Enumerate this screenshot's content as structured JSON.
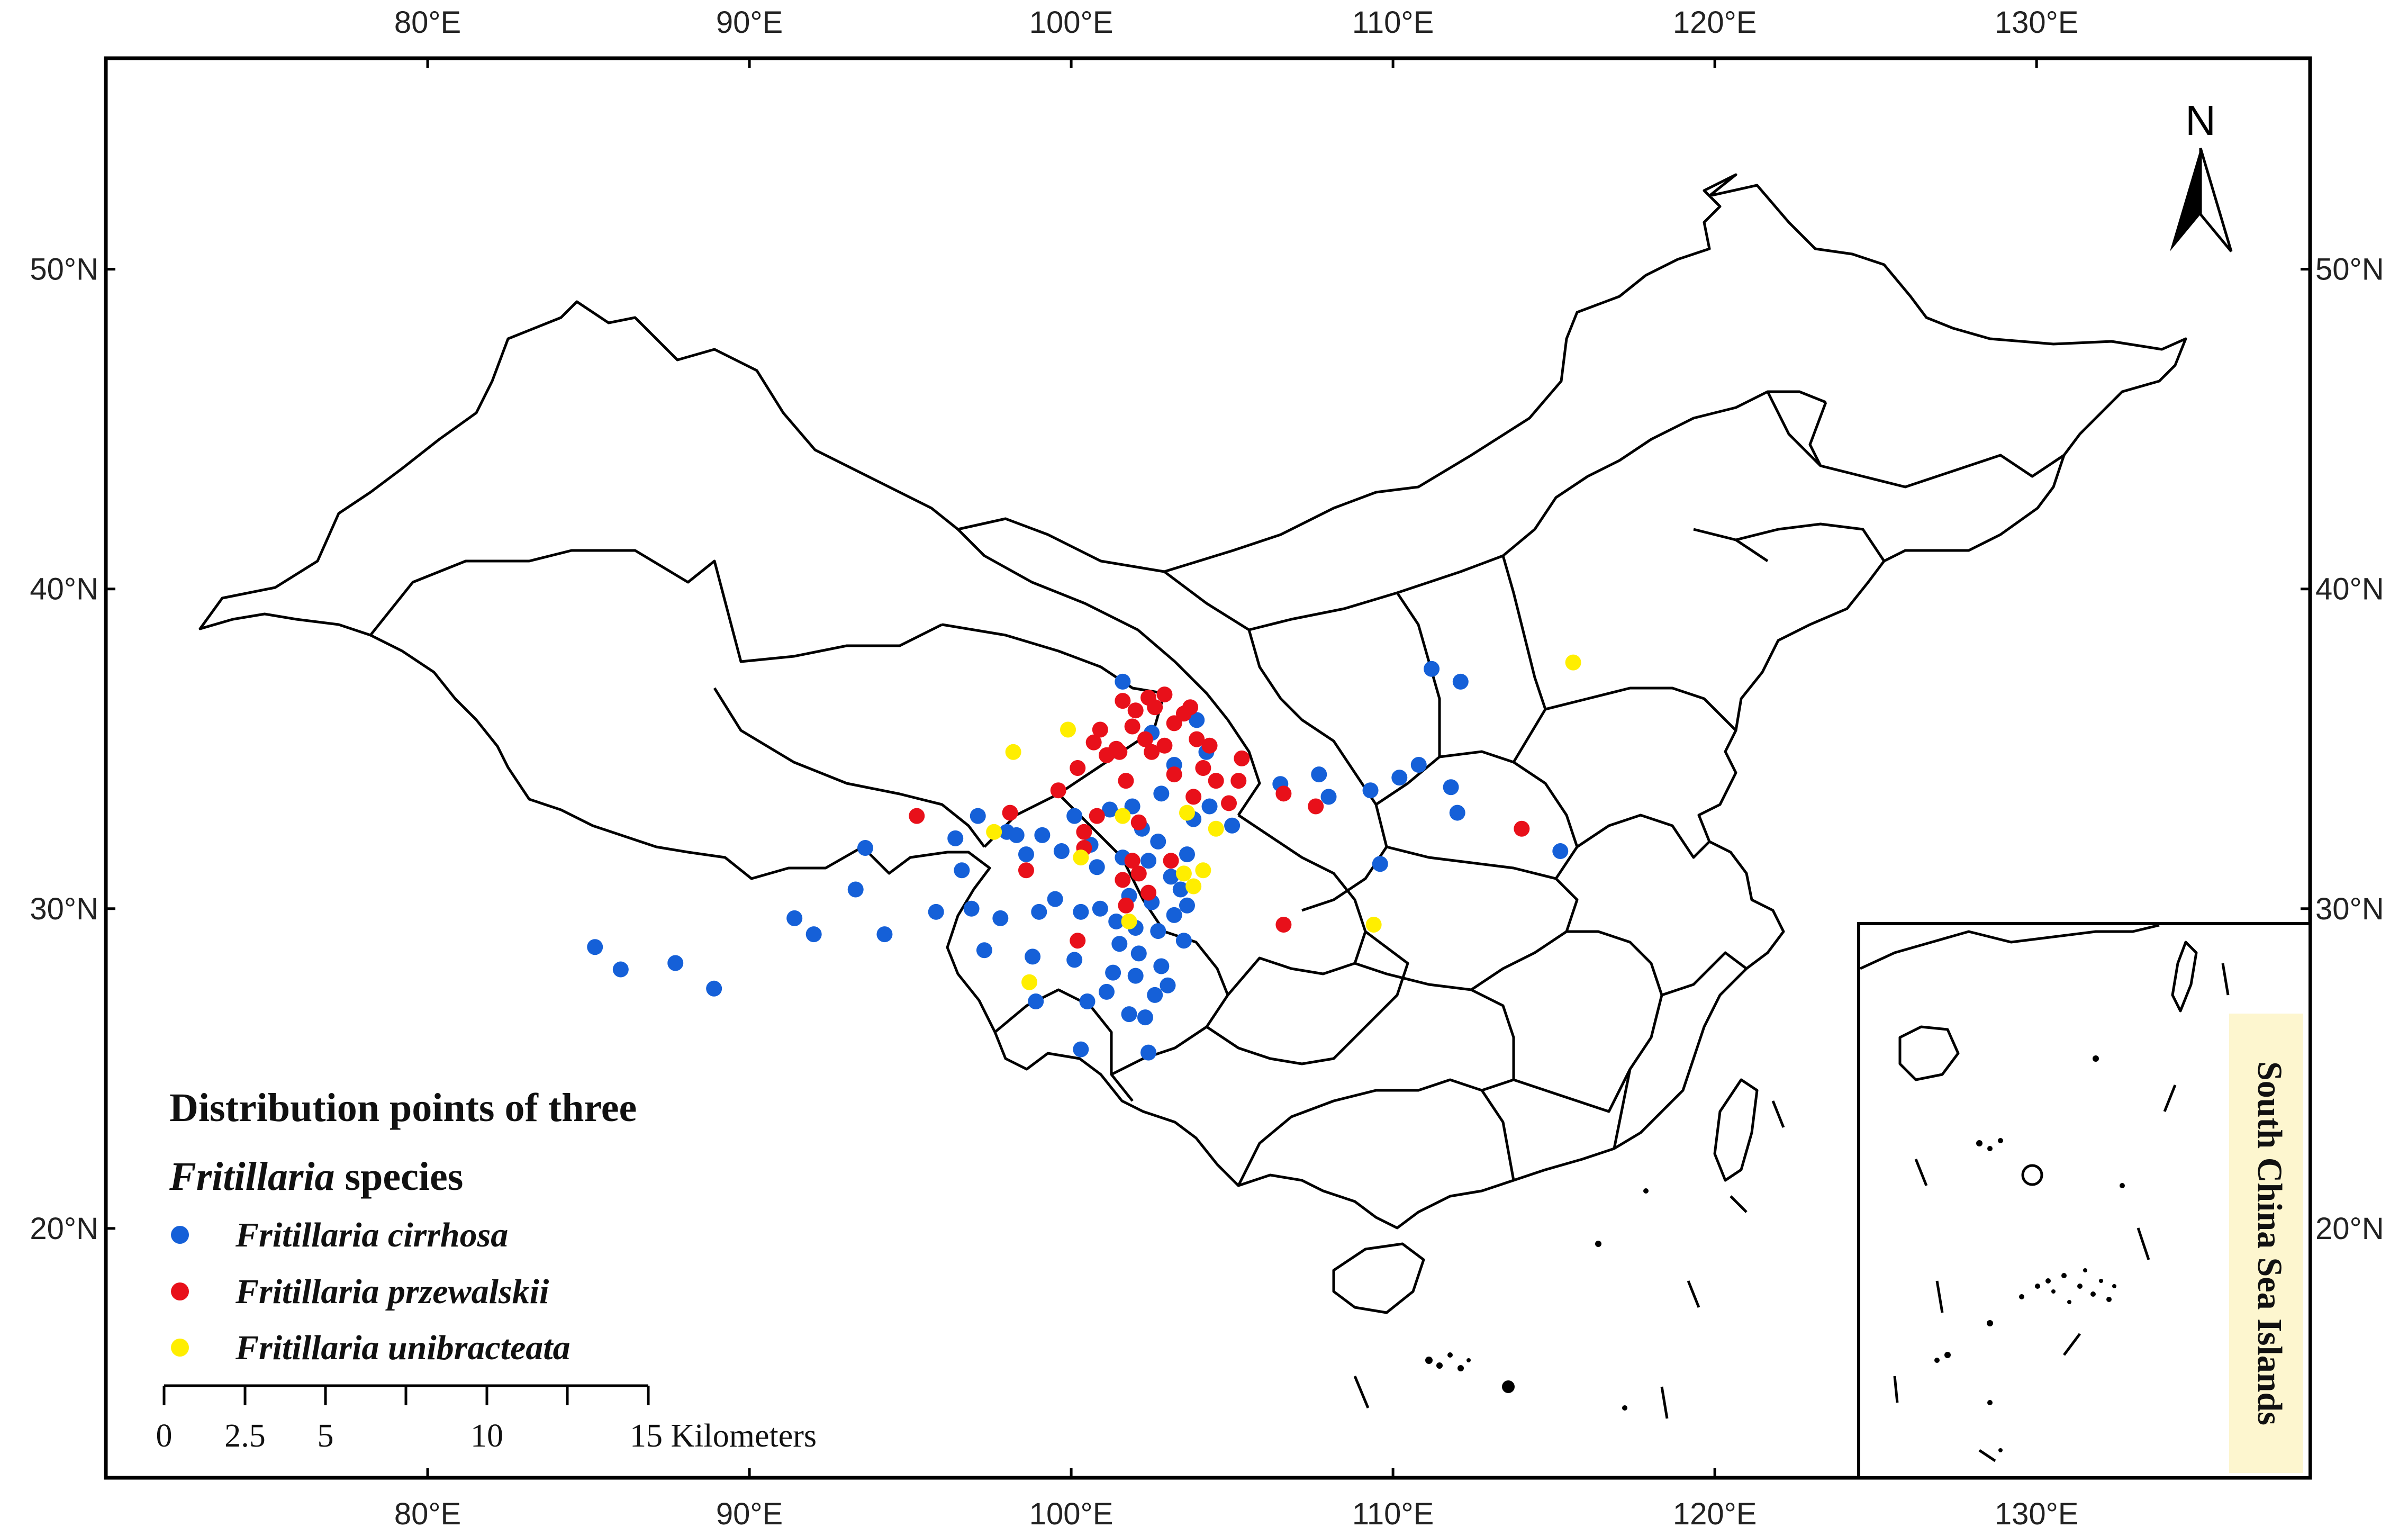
{
  "map": {
    "lon_ticks": [
      80,
      90,
      100,
      110,
      120,
      130
    ],
    "lat_ticks": [
      20,
      30,
      40,
      50
    ],
    "lon_labels": [
      "80°E",
      "90°E",
      "100°E",
      "110°E",
      "120°E",
      "130°E"
    ],
    "lat_labels": [
      "20°N",
      "30°N",
      "40°N",
      "50°N"
    ],
    "extent": {
      "lon_min": 70,
      "lon_max": 138.5,
      "lat_min": 12.2,
      "lat_max": 56.6
    }
  },
  "legend": {
    "title_line1": "Distribution points of three",
    "title_line2_italic": "Fritillaria",
    "title_line2_rest": " species",
    "entries": [
      {
        "label": "Fritillaria cirrhosa",
        "color": "#1560d8"
      },
      {
        "label": "Fritillaria przewalskii",
        "color": "#e8101a"
      },
      {
        "label": "Fritillaria unibracteata",
        "color": "#ffee00"
      }
    ]
  },
  "scale_bar": {
    "labels": [
      "0",
      "2.5",
      "5",
      "10",
      "15 Kilometers"
    ]
  },
  "north_arrow": {
    "label": "N"
  },
  "inset": {
    "label": "South China Sea Islands",
    "label_bg": "#fdf6cf"
  },
  "points": {
    "cirrhosa": [
      [
        85.2,
        28.8
      ],
      [
        86,
        28.1
      ],
      [
        87.7,
        28.3
      ],
      [
        88.9,
        27.5
      ],
      [
        91.4,
        29.7
      ],
      [
        92,
        29.2
      ],
      [
        93.3,
        30.6
      ],
      [
        93.6,
        31.9
      ],
      [
        94.2,
        29.2
      ],
      [
        95.8,
        29.9
      ],
      [
        96.4,
        32.2
      ],
      [
        96.6,
        31.2
      ],
      [
        96.9,
        30
      ],
      [
        97.3,
        28.7
      ],
      [
        97.8,
        29.7
      ],
      [
        98,
        32.4
      ],
      [
        98.6,
        31.7
      ],
      [
        98.9,
        27.1
      ],
      [
        99,
        29.9
      ],
      [
        99.5,
        30.3
      ],
      [
        99.7,
        31.8
      ],
      [
        100.1,
        28.4
      ],
      [
        100.3,
        29.9
      ],
      [
        100.6,
        32
      ],
      [
        100.9,
        30
      ],
      [
        101.2,
        33.1
      ],
      [
        101.3,
        28
      ],
      [
        101.6,
        31.6
      ],
      [
        101.8,
        30.4
      ],
      [
        102,
        29.4
      ],
      [
        102.2,
        32.5
      ],
      [
        102.4,
        31.5
      ],
      [
        102.5,
        30.2
      ],
      [
        102.7,
        29.3
      ],
      [
        102.8,
        28.2
      ],
      [
        103,
        27.6
      ],
      [
        103.2,
        29.8
      ],
      [
        103.4,
        30.6
      ],
      [
        103.6,
        31.7
      ],
      [
        103.8,
        32.8
      ],
      [
        104.3,
        33.2
      ],
      [
        105,
        32.6
      ],
      [
        102.3,
        26.6
      ],
      [
        102.6,
        27.3
      ],
      [
        102,
        27.9
      ],
      [
        101.5,
        28.9
      ],
      [
        100.3,
        25.6
      ],
      [
        102.4,
        25.5
      ],
      [
        101.8,
        26.7
      ],
      [
        101.1,
        27.4
      ],
      [
        100.5,
        27.1
      ],
      [
        98.8,
        28.5
      ],
      [
        101.6,
        37.1
      ],
      [
        102.5,
        35.5
      ],
      [
        103.9,
        35.9
      ],
      [
        104.2,
        34.9
      ],
      [
        103.2,
        34.5
      ],
      [
        102.8,
        33.6
      ],
      [
        101.9,
        33.2
      ],
      [
        106.5,
        33.9
      ],
      [
        107.7,
        34.2
      ],
      [
        108,
        33.5
      ],
      [
        109.3,
        33.7
      ],
      [
        110.2,
        34.1
      ],
      [
        110.8,
        34.5
      ],
      [
        111.8,
        33.8
      ],
      [
        112,
        33
      ],
      [
        109.6,
        31.4
      ],
      [
        111.2,
        37.5
      ],
      [
        112.1,
        37.1
      ],
      [
        115.2,
        31.8
      ],
      [
        100.8,
        31.3
      ],
      [
        103.1,
        31
      ],
      [
        103.6,
        30.1
      ],
      [
        102.7,
        32.1
      ],
      [
        100.1,
        32.9
      ],
      [
        98.3,
        32.3
      ],
      [
        97.1,
        32.9
      ],
      [
        99.1,
        32.3
      ],
      [
        101.4,
        29.6
      ],
      [
        102.1,
        28.6
      ],
      [
        103.5,
        29
      ]
    ],
    "przewalskii": [
      [
        95.2,
        32.9
      ],
      [
        98.1,
        33
      ],
      [
        98.6,
        31.2
      ],
      [
        99.6,
        33.7
      ],
      [
        100.2,
        34.4
      ],
      [
        100.7,
        35.2
      ],
      [
        100.9,
        35.6
      ],
      [
        101.4,
        35
      ],
      [
        101.7,
        34
      ],
      [
        101.6,
        36.5
      ],
      [
        102,
        36.2
      ],
      [
        102.4,
        36.6
      ],
      [
        102.9,
        36.7
      ],
      [
        102.3,
        35.3
      ],
      [
        102.9,
        35.1
      ],
      [
        103.2,
        35.8
      ],
      [
        103.7,
        36.3
      ],
      [
        103.9,
        35.3
      ],
      [
        104.1,
        34.4
      ],
      [
        103.8,
        33.5
      ],
      [
        104.5,
        34
      ],
      [
        104.9,
        33.3
      ],
      [
        105.2,
        34
      ],
      [
        105.3,
        34.7
      ],
      [
        104.3,
        35.1
      ],
      [
        103.2,
        34.2
      ],
      [
        102.5,
        34.9
      ],
      [
        101.9,
        35.7
      ],
      [
        101.5,
        34.9
      ],
      [
        102.1,
        32.7
      ],
      [
        101.9,
        31.5
      ],
      [
        101.6,
        30.9
      ],
      [
        102.1,
        31.1
      ],
      [
        102.4,
        30.5
      ],
      [
        103.1,
        31.5
      ],
      [
        100.4,
        32.4
      ],
      [
        100.8,
        32.9
      ],
      [
        101.7,
        30.1
      ],
      [
        100.2,
        29
      ],
      [
        106.6,
        33.6
      ],
      [
        107.6,
        33.2
      ],
      [
        114,
        32.5
      ],
      [
        106.6,
        29.5
      ],
      [
        100.4,
        31.9
      ],
      [
        101.1,
        34.8
      ],
      [
        103.5,
        36.1
      ],
      [
        102.6,
        36.3
      ]
    ],
    "unibracteata": [
      [
        98.2,
        34.9
      ],
      [
        99.9,
        35.6
      ],
      [
        98.7,
        27.7
      ],
      [
        101.6,
        32.9
      ],
      [
        103.5,
        31.1
      ],
      [
        104.1,
        31.2
      ],
      [
        103.8,
        30.7
      ],
      [
        104.5,
        32.5
      ],
      [
        103.6,
        33
      ],
      [
        101.8,
        29.6
      ],
      [
        109.4,
        29.5
      ],
      [
        115.6,
        37.7
      ],
      [
        97.6,
        32.4
      ],
      [
        100.3,
        31.6
      ]
    ]
  }
}
